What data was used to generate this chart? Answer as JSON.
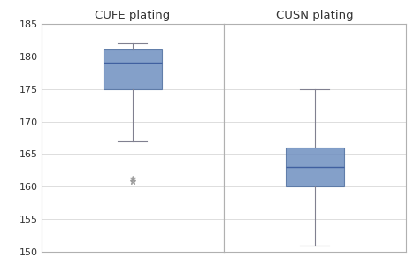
{
  "cufe": {
    "label": "CUFE plating",
    "q1": 175.0,
    "median": 179.0,
    "q3": 181.0,
    "whisker_low": 167.0,
    "whisker_high": 182.0,
    "outliers": [
      161.2,
      160.8
    ]
  },
  "cusn": {
    "label": "CUSN plating",
    "q1": 160.0,
    "median": 163.0,
    "q3": 166.0,
    "whisker_low": 151.0,
    "whisker_high": 175.0,
    "outliers": []
  },
  "ylim": [
    150,
    185
  ],
  "yticks": [
    150,
    155,
    160,
    165,
    170,
    175,
    180,
    185
  ],
  "box_facecolor": "#6E8FC0",
  "box_edgecolor": "#5070A0",
  "median_color": "#4060A0",
  "whisker_color": "#808090",
  "cap_color": "#808090",
  "outlier_marker": "*",
  "outlier_color": "#999999",
  "background_color": "#ffffff",
  "grid_color": "#d8d8d8",
  "title_fontsize": 9.5,
  "tick_fontsize": 8,
  "box_width": 0.45
}
